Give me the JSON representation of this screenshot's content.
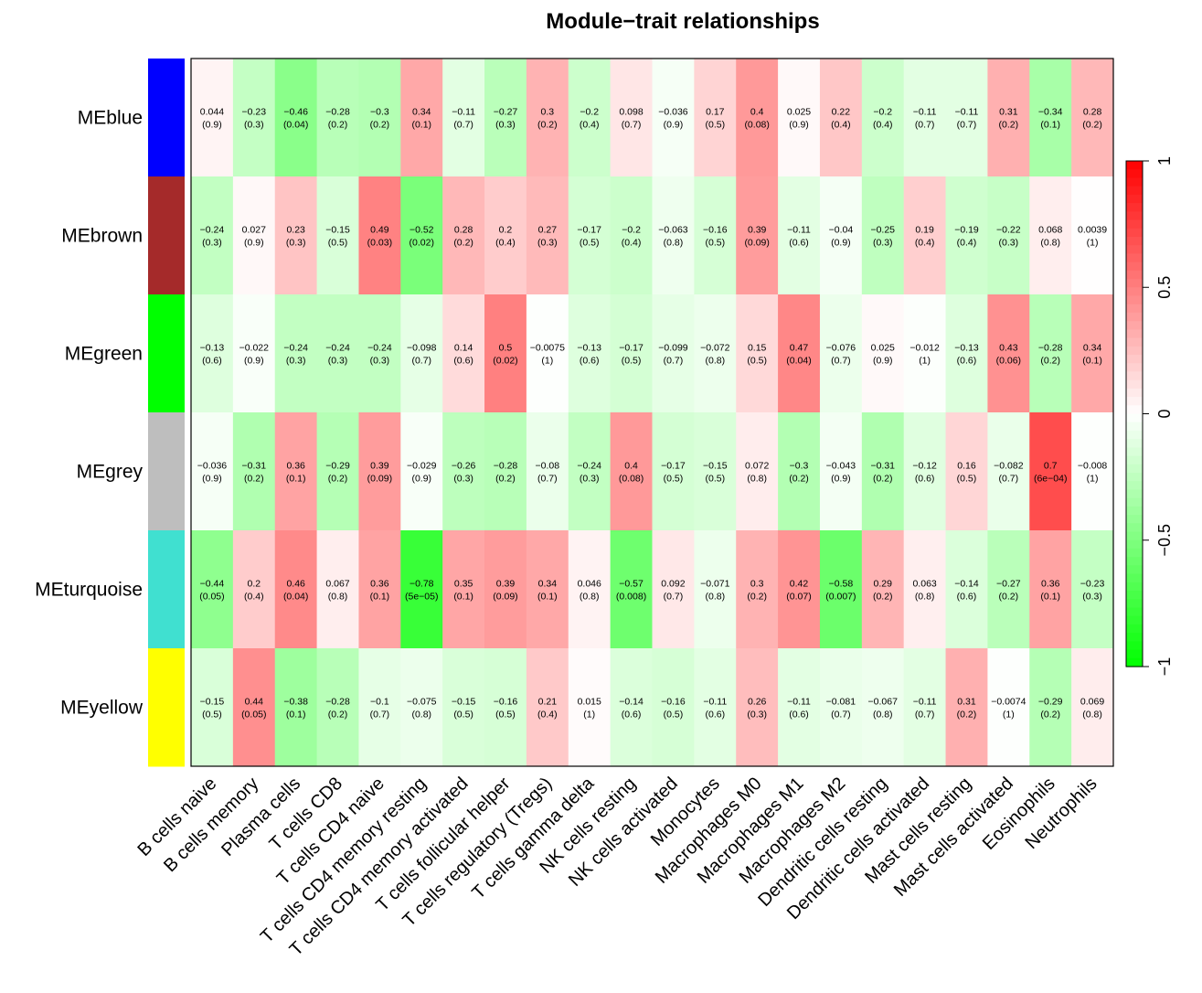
{
  "chart_data": {
    "type": "heatmap",
    "title": "Module−trait relationships",
    "rows": [
      "MEblue",
      "MEbrown",
      "MEgreen",
      "MEgrey",
      "MEturquoise",
      "MEyellow"
    ],
    "row_colors": [
      "#0000ff",
      "#a52a2a",
      "#00ff00",
      "#bebebe",
      "#40e0d0",
      "#ffff00"
    ],
    "columns": [
      "B cells naive",
      "B cells memory",
      "Plasma cells",
      "T cells CD8",
      "T cells CD4 naive",
      "T cells CD4 memory resting",
      "T cells CD4 memory activated",
      "T cells follicular helper",
      "T cells regulatory (Tregs)",
      "T cells gamma delta",
      "NK cells resting",
      "NK cells activated",
      "Monocytes",
      "Macrophages M0",
      "Macrophages M1",
      "Macrophages M2",
      "Dendritic cells resting",
      "Dendritic cells activated",
      "Mast cells resting",
      "Mast cells activated",
      "Eosinophils",
      "Neutrophils"
    ],
    "correlation": [
      [
        "0.044",
        "−0.23",
        "−0.46",
        "−0.28",
        "−0.3",
        "0.34",
        "−0.11",
        "−0.27",
        "0.3",
        "−0.2",
        "0.098",
        "−0.036",
        "0.17",
        "0.4",
        "0.025",
        "0.22",
        "−0.2",
        "−0.11",
        "−0.11",
        "0.31",
        "−0.34",
        "0.28"
      ],
      [
        "−0.24",
        "0.027",
        "0.23",
        "−0.15",
        "0.49",
        "−0.52",
        "0.28",
        "0.2",
        "0.27",
        "−0.17",
        "−0.2",
        "−0.063",
        "−0.16",
        "0.39",
        "−0.11",
        "−0.04",
        "−0.25",
        "0.19",
        "−0.19",
        "−0.22",
        "0.068",
        "0.0039"
      ],
      [
        "−0.13",
        "−0.022",
        "−0.24",
        "−0.24",
        "−0.24",
        "−0.098",
        "0.14",
        "0.5",
        "−0.0075",
        "−0.13",
        "−0.17",
        "−0.099",
        "−0.072",
        "0.15",
        "0.47",
        "−0.076",
        "0.025",
        "−0.012",
        "−0.13",
        "0.43",
        "−0.28",
        "0.34"
      ],
      [
        "−0.036",
        "−0.31",
        "0.36",
        "−0.29",
        "0.39",
        "−0.029",
        "−0.26",
        "−0.28",
        "−0.08",
        "−0.24",
        "0.4",
        "−0.17",
        "−0.15",
        "0.072",
        "−0.3",
        "−0.043",
        "−0.31",
        "−0.12",
        "0.16",
        "−0.082",
        "0.7",
        "−0.008"
      ],
      [
        "−0.44",
        "0.2",
        "0.46",
        "0.067",
        "0.36",
        "−0.78",
        "0.35",
        "0.39",
        "0.34",
        "0.046",
        "−0.57",
        "0.092",
        "−0.071",
        "0.3",
        "0.42",
        "−0.58",
        "0.29",
        "0.063",
        "−0.14",
        "−0.27",
        "0.36",
        "−0.23"
      ],
      [
        "−0.15",
        "0.44",
        "−0.38",
        "−0.28",
        "−0.1",
        "−0.075",
        "−0.15",
        "−0.16",
        "0.21",
        "0.015",
        "−0.14",
        "−0.16",
        "−0.11",
        "0.26",
        "−0.11",
        "−0.081",
        "−0.067",
        "−0.11",
        "0.31",
        "−0.0074",
        "−0.29",
        "0.069"
      ]
    ],
    "pvalue": [
      [
        "(0.9)",
        "(0.3)",
        "(0.04)",
        "(0.2)",
        "(0.2)",
        "(0.1)",
        "(0.7)",
        "(0.3)",
        "(0.2)",
        "(0.4)",
        "(0.7)",
        "(0.9)",
        "(0.5)",
        "(0.08)",
        "(0.9)",
        "(0.4)",
        "(0.4)",
        "(0.7)",
        "(0.7)",
        "(0.2)",
        "(0.1)",
        "(0.2)"
      ],
      [
        "(0.3)",
        "(0.9)",
        "(0.3)",
        "(0.5)",
        "(0.03)",
        "(0.02)",
        "(0.2)",
        "(0.4)",
        "(0.3)",
        "(0.5)",
        "(0.4)",
        "(0.8)",
        "(0.5)",
        "(0.09)",
        "(0.6)",
        "(0.9)",
        "(0.3)",
        "(0.4)",
        "(0.4)",
        "(0.3)",
        "(0.8)",
        "(1)"
      ],
      [
        "(0.6)",
        "(0.9)",
        "(0.3)",
        "(0.3)",
        "(0.3)",
        "(0.7)",
        "(0.6)",
        "(0.02)",
        "(1)",
        "(0.6)",
        "(0.5)",
        "(0.7)",
        "(0.8)",
        "(0.5)",
        "(0.04)",
        "(0.7)",
        "(0.9)",
        "(1)",
        "(0.6)",
        "(0.06)",
        "(0.2)",
        "(0.1)"
      ],
      [
        "(0.9)",
        "(0.2)",
        "(0.1)",
        "(0.2)",
        "(0.09)",
        "(0.9)",
        "(0.3)",
        "(0.2)",
        "(0.7)",
        "(0.3)",
        "(0.08)",
        "(0.5)",
        "(0.5)",
        "(0.8)",
        "(0.2)",
        "(0.9)",
        "(0.2)",
        "(0.6)",
        "(0.5)",
        "(0.7)",
        "(6e−04)",
        "(1)"
      ],
      [
        "(0.05)",
        "(0.4)",
        "(0.04)",
        "(0.8)",
        "(0.1)",
        "(5e−05)",
        "(0.1)",
        "(0.09)",
        "(0.1)",
        "(0.8)",
        "(0.008)",
        "(0.7)",
        "(0.8)",
        "(0.2)",
        "(0.07)",
        "(0.007)",
        "(0.2)",
        "(0.8)",
        "(0.6)",
        "(0.2)",
        "(0.1)",
        "(0.3)"
      ],
      [
        "(0.5)",
        "(0.05)",
        "(0.1)",
        "(0.2)",
        "(0.7)",
        "(0.8)",
        "(0.5)",
        "(0.5)",
        "(0.4)",
        "(1)",
        "(0.6)",
        "(0.5)",
        "(0.6)",
        "(0.3)",
        "(0.6)",
        "(0.7)",
        "(0.8)",
        "(0.7)",
        "(0.2)",
        "(1)",
        "(0.2)",
        "(0.8)"
      ]
    ],
    "color_scale": {
      "min": -1,
      "max": 1,
      "ticks": [
        "1",
        "0.5",
        "0",
        "−0.5",
        "−1"
      ],
      "low_color": "#00ff00",
      "mid_color": "#ffffff",
      "high_color": "#ff0000"
    }
  }
}
